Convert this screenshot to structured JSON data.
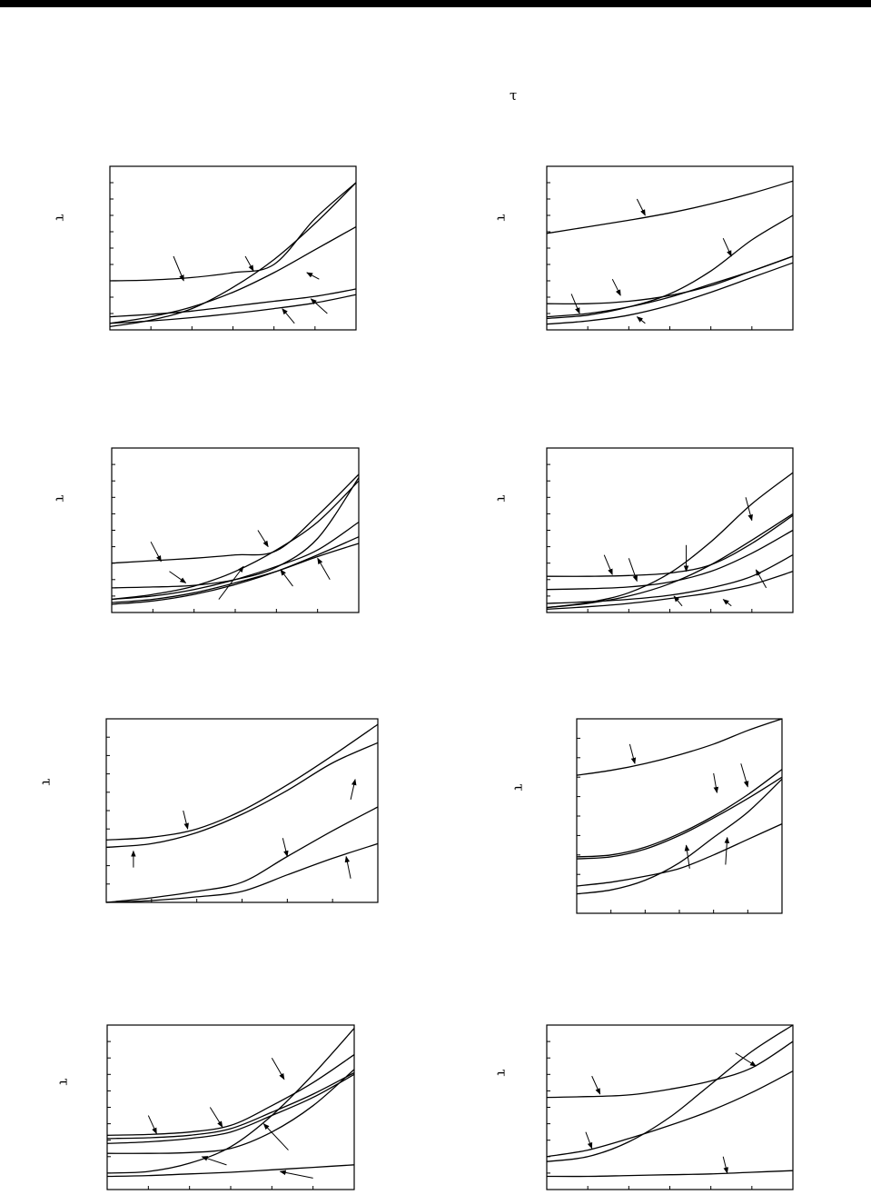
{
  "header": {
    "symbol": "τ"
  },
  "chart_data": [
    {
      "type": "line",
      "axis_symbol": "τ",
      "xlim": [
        0,
        6
      ],
      "ylim": [
        0,
        10
      ],
      "x_ticks": [
        1,
        2,
        3,
        4,
        5
      ],
      "y_ticks": [
        1,
        2,
        3,
        4,
        5,
        6,
        7,
        8,
        9
      ],
      "series": [
        {
          "x": [
            0,
            1,
            2,
            3,
            4,
            5,
            6
          ],
          "y": [
            3.0,
            3.05,
            3.2,
            3.5,
            4.0,
            6.8,
            9.0
          ]
        },
        {
          "x": [
            0,
            1,
            2,
            3,
            4,
            5,
            6
          ],
          "y": [
            0.2,
            0.6,
            1.3,
            2.6,
            4.3,
            6.5,
            9.0
          ]
        },
        {
          "x": [
            0,
            1,
            2,
            3,
            4,
            5,
            6
          ],
          "y": [
            0.4,
            0.8,
            1.4,
            2.3,
            3.5,
            4.9,
            6.3
          ]
        },
        {
          "x": [
            0,
            1,
            2,
            3,
            4,
            5,
            6
          ],
          "y": [
            0.8,
            0.95,
            1.15,
            1.45,
            1.75,
            2.05,
            2.5
          ]
        },
        {
          "x": [
            0,
            1,
            2,
            3,
            4,
            5,
            6
          ],
          "y": [
            0.4,
            0.55,
            0.75,
            1.0,
            1.3,
            1.65,
            2.15
          ]
        }
      ],
      "arrows": [
        [
          1.8,
          3.0,
          1.55,
          4.5
        ],
        [
          3.5,
          3.6,
          3.3,
          4.5
        ],
        [
          4.8,
          3.5,
          5.1,
          3.1
        ],
        [
          4.9,
          1.9,
          5.3,
          1.0
        ],
        [
          4.2,
          1.3,
          4.5,
          0.4
        ]
      ]
    },
    {
      "type": "line",
      "axis_symbol": "τ",
      "xlim": [
        0,
        6
      ],
      "ylim": [
        0,
        10
      ],
      "x_ticks": [
        1,
        2,
        3,
        4,
        5
      ],
      "y_ticks": [
        1,
        2,
        3,
        4,
        5,
        6,
        7,
        8,
        9
      ],
      "series": [
        {
          "x": [
            0,
            1,
            2,
            3,
            4,
            5,
            6
          ],
          "y": [
            5.9,
            6.3,
            6.7,
            7.15,
            7.7,
            8.35,
            9.1
          ]
        },
        {
          "x": [
            0,
            1,
            2,
            3,
            4,
            5,
            6
          ],
          "y": [
            1.6,
            1.6,
            1.75,
            2.1,
            2.7,
            3.6,
            4.5
          ]
        },
        {
          "x": [
            0,
            1,
            2,
            3,
            4,
            5,
            6
          ],
          "y": [
            0.7,
            0.9,
            1.4,
            2.2,
            3.6,
            5.5,
            7.0
          ]
        },
        {
          "x": [
            0,
            1,
            2,
            3,
            4,
            5,
            6
          ],
          "y": [
            0.8,
            1.0,
            1.4,
            2.0,
            2.8,
            3.6,
            4.5
          ]
        },
        {
          "x": [
            0,
            1,
            2,
            3,
            4,
            5,
            6
          ],
          "y": [
            0.35,
            0.55,
            0.9,
            1.5,
            2.3,
            3.2,
            4.1
          ]
        }
      ],
      "arrows": [
        [
          2.4,
          7.0,
          2.2,
          8.0
        ],
        [
          4.5,
          4.5,
          4.3,
          5.6
        ],
        [
          1.8,
          2.1,
          1.6,
          3.1
        ],
        [
          0.8,
          1.0,
          0.6,
          2.2
        ],
        [
          2.2,
          0.8,
          2.4,
          0.4
        ]
      ]
    },
    {
      "type": "line",
      "axis_symbol": "τ",
      "xlim": [
        0,
        6
      ],
      "ylim": [
        0,
        10
      ],
      "x_ticks": [
        1,
        2,
        3,
        4,
        5
      ],
      "y_ticks": [
        1,
        2,
        3,
        4,
        5,
        6,
        7,
        8,
        9
      ],
      "series": [
        {
          "x": [
            0,
            1,
            2,
            3,
            4,
            5,
            6
          ],
          "y": [
            3.0,
            3.15,
            3.3,
            3.5,
            3.75,
            5.9,
            8.4
          ]
        },
        {
          "x": [
            0,
            1,
            2,
            3,
            4,
            5,
            6
          ],
          "y": [
            1.5,
            1.55,
            1.65,
            2.0,
            2.75,
            4.5,
            8.2
          ]
        },
        {
          "x": [
            0,
            1,
            2,
            3,
            4,
            5,
            6
          ],
          "y": [
            0.8,
            1.1,
            1.6,
            2.5,
            3.8,
            5.5,
            8.0
          ]
        },
        {
          "x": [
            0,
            1,
            2,
            3,
            4,
            5,
            6
          ],
          "y": [
            0.8,
            1.0,
            1.4,
            2.0,
            2.8,
            3.8,
            5.5
          ]
        },
        {
          "x": [
            0,
            1,
            2,
            3,
            4,
            5,
            6
          ],
          "y": [
            0.5,
            0.7,
            1.1,
            1.7,
            2.5,
            3.5,
            4.6
          ]
        },
        {
          "x": [
            0,
            1,
            2,
            3,
            4,
            5,
            6
          ],
          "y": [
            0.6,
            0.8,
            1.2,
            1.8,
            2.5,
            3.4,
            4.2
          ]
        }
      ],
      "arrows": [
        [
          1.2,
          3.1,
          0.95,
          4.3
        ],
        [
          3.8,
          4.0,
          3.55,
          5.0
        ],
        [
          3.2,
          2.8,
          2.6,
          0.8
        ],
        [
          4.1,
          2.6,
          4.4,
          1.6
        ],
        [
          5.0,
          3.3,
          5.3,
          2.0
        ],
        [
          1.8,
          1.8,
          1.4,
          2.5
        ]
      ]
    },
    {
      "type": "line",
      "axis_symbol": "τ",
      "xlim": [
        0,
        6
      ],
      "ylim": [
        0,
        10
      ],
      "x_ticks": [
        1,
        2,
        3,
        4,
        5
      ],
      "y_ticks": [
        1,
        2,
        3,
        4,
        5,
        6,
        7,
        8,
        9
      ],
      "series": [
        {
          "x": [
            0,
            1,
            2,
            3,
            4,
            5,
            6
          ],
          "y": [
            2.2,
            2.2,
            2.25,
            2.4,
            2.9,
            4.2,
            5.9
          ]
        },
        {
          "x": [
            0,
            1,
            2,
            3,
            4,
            5,
            6
          ],
          "y": [
            1.4,
            1.45,
            1.55,
            1.85,
            2.5,
            3.6,
            5.0
          ]
        },
        {
          "x": [
            0,
            1,
            2,
            3,
            4,
            5,
            6
          ],
          "y": [
            0.3,
            0.6,
            1.2,
            2.4,
            4.3,
            6.6,
            8.5
          ]
        },
        {
          "x": [
            0,
            1,
            2,
            3,
            4,
            5,
            6
          ],
          "y": [
            0.3,
            0.55,
            1.0,
            1.75,
            2.9,
            4.4,
            6.0
          ]
        },
        {
          "x": [
            0,
            1,
            2,
            3,
            4,
            5,
            6
          ],
          "y": [
            0.55,
            0.65,
            0.8,
            1.05,
            1.5,
            2.2,
            3.5
          ]
        },
        {
          "x": [
            0,
            1,
            2,
            3,
            4,
            5,
            6
          ],
          "y": [
            0.2,
            0.35,
            0.55,
            0.85,
            1.2,
            1.7,
            2.5
          ]
        }
      ],
      "arrows": [
        [
          1.6,
          2.3,
          1.4,
          3.5
        ],
        [
          2.2,
          1.9,
          2.0,
          3.3
        ],
        [
          5.0,
          5.6,
          4.85,
          7.0
        ],
        [
          3.4,
          2.5,
          3.4,
          4.1
        ],
        [
          5.1,
          2.6,
          5.35,
          1.5
        ],
        [
          3.1,
          1.0,
          3.3,
          0.4
        ],
        [
          4.3,
          0.8,
          4.5,
          0.4
        ]
      ]
    },
    {
      "type": "line",
      "axis_symbol": "τ",
      "xlim": [
        0,
        6
      ],
      "ylim": [
        0,
        10
      ],
      "x_ticks": [
        1,
        2,
        3,
        4,
        5
      ],
      "y_ticks": [
        1,
        2,
        3,
        4,
        5,
        6,
        7,
        8,
        9
      ],
      "series": [
        {
          "x": [
            0,
            1,
            2,
            3,
            4,
            5,
            6
          ],
          "y": [
            3.4,
            3.55,
            4.0,
            5.0,
            6.4,
            8.0,
            9.7
          ]
        },
        {
          "x": [
            0,
            1,
            2,
            3,
            4,
            5,
            6
          ],
          "y": [
            3.0,
            3.2,
            3.8,
            4.8,
            6.1,
            7.6,
            8.7
          ]
        },
        {
          "x": [
            0,
            1,
            2,
            3,
            4,
            5,
            6
          ],
          "y": [
            0.0,
            0.25,
            0.6,
            1.1,
            2.5,
            3.9,
            5.2
          ]
        },
        {
          "x": [
            0,
            1,
            2,
            3,
            4,
            5,
            6
          ],
          "y": [
            0.0,
            0.1,
            0.3,
            0.6,
            1.5,
            2.4,
            3.2
          ]
        }
      ],
      "arrows": [
        [
          1.8,
          4.0,
          1.7,
          5.0
        ],
        [
          5.5,
          6.7,
          5.4,
          5.6
        ],
        [
          0.6,
          2.8,
          0.6,
          1.9
        ],
        [
          4.0,
          2.5,
          3.9,
          3.5
        ],
        [
          5.3,
          2.5,
          5.4,
          1.3
        ]
      ]
    },
    {
      "type": "line",
      "axis_symbol": "τ",
      "xlim": [
        0,
        6
      ],
      "ylim": [
        0,
        10
      ],
      "x_ticks": [
        1,
        2,
        3,
        4,
        5
      ],
      "y_ticks": [
        1,
        2,
        3,
        4,
        5,
        6,
        7,
        8,
        9
      ],
      "series": [
        {
          "x": [
            0,
            1,
            2,
            3,
            4,
            5,
            6
          ],
          "y": [
            7.1,
            7.35,
            7.7,
            8.15,
            8.7,
            9.4,
            10.0
          ]
        },
        {
          "x": [
            0,
            1,
            2,
            3,
            4,
            5,
            6
          ],
          "y": [
            2.9,
            3.0,
            3.4,
            4.1,
            5.0,
            6.1,
            7.4
          ]
        },
        {
          "x": [
            0,
            1,
            2,
            3,
            4,
            5,
            6
          ],
          "y": [
            2.8,
            2.9,
            3.3,
            4.0,
            4.9,
            5.9,
            7.0
          ]
        },
        {
          "x": [
            0,
            1,
            2,
            3,
            4,
            5,
            6
          ],
          "y": [
            1.0,
            1.2,
            1.7,
            2.6,
            3.9,
            5.2,
            6.9
          ]
        },
        {
          "x": [
            0,
            1,
            2,
            3,
            4,
            5,
            6
          ],
          "y": [
            1.4,
            1.6,
            1.9,
            2.3,
            3.0,
            3.8,
            4.6
          ]
        }
      ],
      "arrows": [
        [
          1.7,
          7.7,
          1.55,
          8.7
        ],
        [
          4.1,
          6.2,
          4.0,
          7.2
        ],
        [
          5.0,
          6.5,
          4.8,
          7.7
        ],
        [
          3.2,
          3.5,
          3.3,
          2.3
        ],
        [
          4.4,
          3.9,
          4.35,
          2.5
        ]
      ]
    },
    {
      "type": "line",
      "axis_symbol": "τ",
      "xlim": [
        0,
        6
      ],
      "ylim": [
        0,
        10
      ],
      "x_ticks": [
        1,
        2,
        3,
        4,
        5
      ],
      "y_ticks": [
        1,
        2,
        3,
        4,
        5,
        6,
        7,
        8,
        9
      ],
      "series": [
        {
          "x": [
            0,
            1,
            2,
            3,
            4,
            5,
            6
          ],
          "y": [
            1.0,
            1.1,
            1.6,
            2.6,
            4.5,
            7.0,
            9.8
          ]
        },
        {
          "x": [
            0,
            1,
            2,
            3,
            4,
            5,
            6
          ],
          "y": [
            3.3,
            3.35,
            3.5,
            3.9,
            5.1,
            6.5,
            8.2
          ]
        },
        {
          "x": [
            0,
            1,
            2,
            3,
            4,
            5,
            6
          ],
          "y": [
            3.1,
            3.15,
            3.3,
            3.7,
            4.7,
            5.8,
            7.1
          ]
        },
        {
          "x": [
            0,
            1,
            2,
            3,
            4,
            5,
            6
          ],
          "y": [
            2.8,
            2.9,
            3.1,
            3.5,
            4.5,
            5.6,
            7.0
          ]
        },
        {
          "x": [
            0,
            1,
            2,
            3,
            4,
            5,
            6
          ],
          "y": [
            2.2,
            2.2,
            2.25,
            2.5,
            3.5,
            5.1,
            7.3
          ]
        },
        {
          "x": [
            0,
            1,
            2,
            3,
            4,
            5,
            6
          ],
          "y": [
            0.8,
            0.85,
            0.95,
            1.05,
            1.2,
            1.35,
            1.5
          ]
        }
      ],
      "arrows": [
        [
          1.2,
          3.4,
          1.0,
          4.5
        ],
        [
          2.8,
          3.8,
          2.5,
          5.0
        ],
        [
          4.3,
          6.7,
          4.0,
          8.0
        ],
        [
          3.8,
          4.0,
          4.4,
          2.4
        ],
        [
          2.3,
          2.0,
          2.9,
          1.5
        ],
        [
          4.2,
          1.1,
          5.0,
          0.7
        ]
      ]
    },
    {
      "type": "line",
      "axis_symbol": "τ",
      "xlim": [
        0,
        6
      ],
      "ylim": [
        0,
        10
      ],
      "x_ticks": [
        1,
        2,
        3,
        4,
        5
      ],
      "y_ticks": [
        1,
        2,
        3,
        4,
        5,
        6,
        7,
        8,
        9
      ],
      "series": [
        {
          "x": [
            0,
            1,
            2,
            3,
            4,
            5,
            6
          ],
          "y": [
            5.6,
            5.65,
            5.75,
            6.1,
            6.6,
            7.4,
            9.0
          ]
        },
        {
          "x": [
            0,
            1,
            2,
            3,
            4,
            5,
            6
          ],
          "y": [
            1.7,
            2.0,
            2.9,
            4.4,
            6.4,
            8.4,
            10.0
          ]
        },
        {
          "x": [
            0,
            1,
            2,
            3,
            4,
            5,
            6
          ],
          "y": [
            2.0,
            2.4,
            3.1,
            3.9,
            4.8,
            5.9,
            7.2
          ]
        },
        {
          "x": [
            0,
            1,
            2,
            3,
            4,
            5,
            6
          ],
          "y": [
            0.8,
            0.8,
            0.85,
            0.9,
            0.95,
            1.05,
            1.15
          ]
        }
      ],
      "arrows": [
        [
          1.3,
          5.8,
          1.1,
          6.9
        ],
        [
          5.1,
          7.5,
          4.6,
          8.3
        ],
        [
          1.1,
          2.5,
          0.95,
          3.5
        ],
        [
          4.4,
          1.0,
          4.3,
          2.0
        ]
      ]
    }
  ]
}
